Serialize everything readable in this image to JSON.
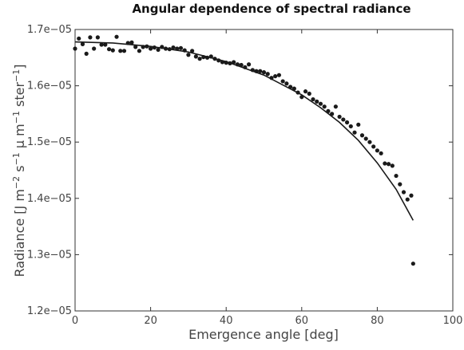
{
  "chart_data": {
    "type": "scatter",
    "title": "Angular dependence of spectral radiance",
    "xlabel": "Emergence angle [deg]",
    "ylabel": [
      "Radiance [J m",
      "−2",
      " s",
      "−1",
      " μ m",
      "−1",
      " ster",
      "−1",
      "]"
    ],
    "xlim": [
      0,
      100
    ],
    "xticks": [
      0,
      20,
      40,
      60,
      80,
      100
    ],
    "ylim": [
      1.2e-05,
      1.7e-05
    ],
    "yticks": [
      {
        "value": 1.2e-05,
        "label": "1.2e−05"
      },
      {
        "value": 1.3e-05,
        "label": "1.3e−05"
      },
      {
        "value": 1.4e-05,
        "label": "1.4e−05"
      },
      {
        "value": 1.5e-05,
        "label": "1.5e−05"
      },
      {
        "value": 1.6e-05,
        "label": "1.6e−05"
      },
      {
        "value": 1.7e-05,
        "label": "1.7e−05"
      }
    ],
    "series": [
      {
        "type": "scatter",
        "color": "#1a1a1a",
        "x": [
          0,
          1,
          2,
          3,
          4,
          5,
          6,
          7,
          8,
          9,
          10,
          11,
          12,
          13,
          14,
          15,
          16,
          17,
          18,
          19,
          20,
          21,
          22,
          23,
          24,
          25,
          26,
          27,
          28,
          29,
          30,
          31,
          32,
          33,
          34,
          35,
          36,
          37,
          38,
          39,
          40,
          41,
          42,
          43,
          44,
          45,
          46,
          47,
          48,
          49,
          50,
          51,
          52,
          53,
          54,
          55,
          56,
          57,
          58,
          59,
          60,
          61,
          62,
          63,
          64,
          65,
          66,
          67,
          68,
          69,
          70,
          71,
          72,
          73,
          74,
          75,
          76,
          77,
          78,
          79,
          80,
          81,
          82,
          83,
          84,
          85,
          86,
          87,
          88,
          89,
          89.5
        ],
        "values": [
          1.666e-05,
          1.684e-05,
          1.674e-05,
          1.657e-05,
          1.686e-05,
          1.666e-05,
          1.686e-05,
          1.673e-05,
          1.673e-05,
          1.665e-05,
          1.663e-05,
          1.687e-05,
          1.662e-05,
          1.662e-05,
          1.676e-05,
          1.677e-05,
          1.669e-05,
          1.662e-05,
          1.669e-05,
          1.67e-05,
          1.666e-05,
          1.668e-05,
          1.664e-05,
          1.669e-05,
          1.666e-05,
          1.665e-05,
          1.668e-05,
          1.666e-05,
          1.667e-05,
          1.663e-05,
          1.655e-05,
          1.662e-05,
          1.652e-05,
          1.648e-05,
          1.651e-05,
          1.65e-05,
          1.652e-05,
          1.648e-05,
          1.645e-05,
          1.642e-05,
          1.641e-05,
          1.64e-05,
          1.642e-05,
          1.638e-05,
          1.637e-05,
          1.633e-05,
          1.638e-05,
          1.628e-05,
          1.626e-05,
          1.626e-05,
          1.624e-05,
          1.621e-05,
          1.614e-05,
          1.617e-05,
          1.619e-05,
          1.608e-05,
          1.604e-05,
          1.598e-05,
          1.595e-05,
          1.588e-05,
          1.58e-05,
          1.59e-05,
          1.586e-05,
          1.576e-05,
          1.572e-05,
          1.568e-05,
          1.563e-05,
          1.555e-05,
          1.55e-05,
          1.563e-05,
          1.545e-05,
          1.54e-05,
          1.535e-05,
          1.528e-05,
          1.517e-05,
          1.531e-05,
          1.512e-05,
          1.506e-05,
          1.5e-05,
          1.492e-05,
          1.485e-05,
          1.48e-05,
          1.462e-05,
          1.461e-05,
          1.458e-05,
          1.44e-05,
          1.425e-05,
          1.411e-05,
          1.398e-05,
          1.405e-05,
          1.284e-05
        ]
      },
      {
        "type": "line",
        "color": "#1a1a1a",
        "x": [
          0,
          10,
          20,
          30,
          40,
          50,
          60,
          65,
          70,
          75,
          80,
          85,
          89.5
        ],
        "values": [
          1.678e-05,
          1.676e-05,
          1.67e-05,
          1.66e-05,
          1.643e-05,
          1.619e-05,
          1.584e-05,
          1.561e-05,
          1.535e-05,
          1.503e-05,
          1.463e-05,
          1.416e-05,
          1.361e-05
        ]
      }
    ]
  }
}
